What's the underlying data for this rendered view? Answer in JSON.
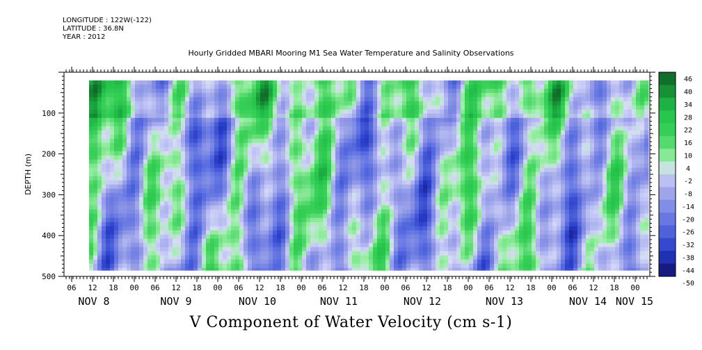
{
  "header": {
    "longitude": "LONGITUDE : 122W(-122)",
    "latitude": "LATITUDE : 36.8N",
    "year": "YEAR : 2012"
  },
  "chart_data": {
    "type": "heatmap",
    "title": "Hourly Gridded MBARI Mooring M1 Sea Water Temperature and Salinity Observations",
    "caption": "V Component of Water Velocity (cm s-1)",
    "ylabel": "DEPTH (m)",
    "ylim": [
      500,
      0
    ],
    "y_ticks": [
      100,
      200,
      300,
      400,
      500
    ],
    "x_hour_ticks": [
      "06",
      "12",
      "18",
      "00",
      "06",
      "12",
      "18",
      "00",
      "06",
      "12",
      "18",
      "00",
      "06",
      "12",
      "18",
      "00",
      "06",
      "12",
      "18",
      "00",
      "06",
      "12",
      "18",
      "00",
      "06",
      "12",
      "18",
      "00",
      "06",
      "12",
      "18",
      "00"
    ],
    "x_day_labels": [
      "NOV  8",
      "NOV  9",
      "NOV 10",
      "NOV 11",
      "NOV 12",
      "NOV 13",
      "NOV 14",
      "NOV 15"
    ],
    "data_extent": {
      "depth_range": [
        20,
        485
      ],
      "time_start": "NOV 8 12:00",
      "time_end": "NOV 15 03:00"
    },
    "colorbar_levels": [
      "46",
      "40",
      "34",
      "28",
      "22",
      "16",
      "10",
      "4",
      "-2",
      "-8",
      "-14",
      "-20",
      "-26",
      "-32",
      "-38",
      "-44",
      "-50"
    ],
    "colors": {
      "positive_strong": "#0b5f22",
      "positive_mid": "#22c24a",
      "positive_light": "#9ef0a8",
      "negative_light": "#c9cdf6",
      "negative_mid": "#8f97e6",
      "negative_strong": "#10106a"
    }
  }
}
